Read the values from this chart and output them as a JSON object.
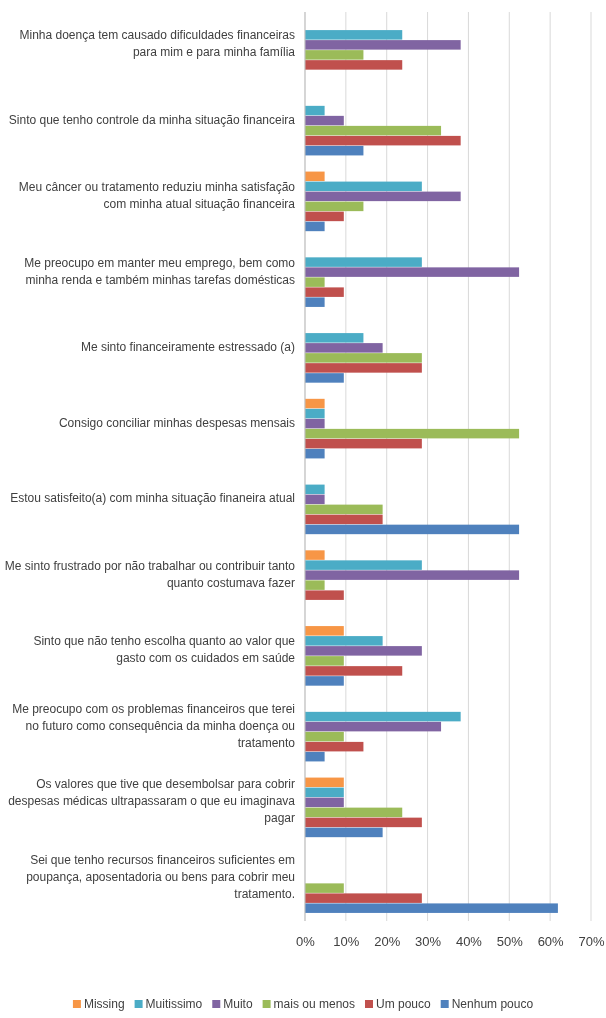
{
  "chart_data": {
    "type": "bar",
    "orientation": "horizontal",
    "categories": [
      "Minha doença tem causado dificuldades financeiras para mim e para minha família",
      "Sinto que tenho controle da minha situação financeira",
      "Meu câncer ou tratamento reduziu minha  satisfação com minha atual situação financeira",
      "Me preocupo em manter meu emprego, bem como minha renda e também minhas tarefas domésticas",
      "Me sinto financeiramente estressado (a)",
      "Consigo conciliar minhas despesas mensais",
      "Estou satisfeito(a) com minha situação finaneira atual",
      "Me sinto frustrado por não trabalhar ou contribuir  tanto quanto costumava fazer",
      "Sinto que não tenho escolha quanto ao valor que gasto com os cuidados em saúde",
      "Me preocupo com os problemas financeiros que terei no futuro como consequência da minha doença ou tratamento",
      "Os valores que tive que desembolsar para cobrir despesas médicas ultrapassaram o que eu imaginava pagar",
      "Sei que tenho recursos  financeiros suficientes em poupança, aposentadoria ou bens  para cobrir meu tratamento."
    ],
    "series": [
      {
        "name": "Missing",
        "color": "#f79646",
        "values": [
          0,
          0,
          4.8,
          0,
          0,
          4.8,
          0,
          4.8,
          9.5,
          0,
          9.5,
          0
        ]
      },
      {
        "name": "Muitissimo",
        "color": "#4bacc6",
        "values": [
          23.8,
          4.8,
          28.6,
          28.6,
          14.3,
          4.8,
          4.8,
          28.6,
          19.0,
          38.1,
          9.5,
          0
        ]
      },
      {
        "name": "Muito",
        "color": "#8064a2",
        "values": [
          38.1,
          9.5,
          38.1,
          52.4,
          19.0,
          4.8,
          4.8,
          52.4,
          28.6,
          33.3,
          9.5,
          0
        ]
      },
      {
        "name": "mais ou menos",
        "color": "#9bbb59",
        "values": [
          14.3,
          33.3,
          14.3,
          4.8,
          28.6,
          52.4,
          19.0,
          4.8,
          9.5,
          9.5,
          23.8,
          9.5
        ]
      },
      {
        "name": "Um pouco",
        "color": "#c0504d",
        "values": [
          23.8,
          38.1,
          9.5,
          9.5,
          28.6,
          28.6,
          19.0,
          9.5,
          23.8,
          14.3,
          28.6,
          28.6
        ]
      },
      {
        "name": "Nenhum pouco",
        "color": "#4f81bd",
        "values": [
          0,
          14.3,
          4.8,
          4.8,
          9.5,
          4.8,
          52.4,
          0,
          9.5,
          4.8,
          19.0,
          61.9
        ]
      }
    ],
    "xlim": [
      0,
      70
    ],
    "xticks": [
      {
        "value": 0,
        "label": "0%"
      },
      {
        "value": 10,
        "label": "10%"
      },
      {
        "value": 20,
        "label": "20%"
      },
      {
        "value": 30,
        "label": "30%"
      },
      {
        "value": 40,
        "label": "40%"
      },
      {
        "value": 50,
        "label": "50%"
      },
      {
        "value": 60,
        "label": "60%"
      },
      {
        "value": 70,
        "label": "70%"
      }
    ],
    "grid": "x",
    "legend": "bottom"
  }
}
